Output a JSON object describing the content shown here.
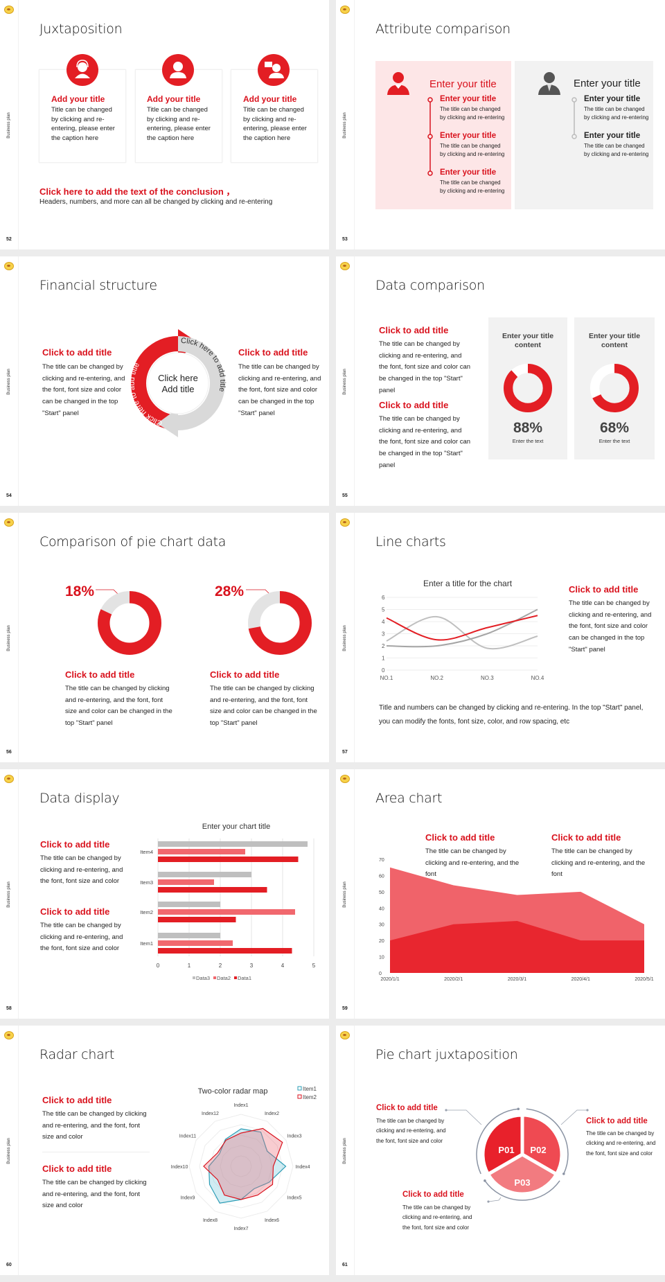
{
  "sidebar_label": "Business plan",
  "colors": {
    "accent": "#e31e24",
    "pink_panel": "#fde6e7",
    "gray_panel": "#f2f2f2",
    "light_red": "#f1686e",
    "gray": "#bfbfbf"
  },
  "s52": {
    "page": "52",
    "title": "Juxtaposition",
    "cards": [
      {
        "icon": "customer-service-icon",
        "title": "Add your title",
        "body": "Title can be changed by clicking and re-entering, please enter the caption here"
      },
      {
        "icon": "staff-person-icon",
        "title": "Add your title",
        "body": "Title can be changed by clicking and re-entering, please enter the caption here"
      },
      {
        "icon": "presenter-icon",
        "title": "Add your title",
        "body": "Title can be changed by clicking and re-entering, please enter the caption here"
      }
    ],
    "conclusion_title": "Click here to add the text of the conclusion ，",
    "conclusion_body": "Headers, numbers, and more can all be changed by clicking and re-entering"
  },
  "s53": {
    "page": "53",
    "title": "Attribute comparison",
    "left": {
      "icon": "female-person-icon",
      "heading": "Enter your title",
      "items": [
        {
          "title": "Enter your title",
          "body": "The title can be changed by clicking and re-entering"
        },
        {
          "title": "Enter your title",
          "body": "The title can be changed by clicking and re-entering"
        },
        {
          "title": "Enter your title",
          "body": "The title can be changed by clicking and re-entering"
        }
      ]
    },
    "right": {
      "icon": "male-person-icon",
      "heading": "Enter your title",
      "items": [
        {
          "title": "Enter your title",
          "body": "The title can be changed by clicking and re-entering"
        },
        {
          "title": "Enter your title",
          "body": "The title can be changed by clicking and re-entering"
        }
      ]
    }
  },
  "s54": {
    "page": "54",
    "title": "Financial structure",
    "left": {
      "title": "Click to add title",
      "body": "The title can be changed by clicking and re-entering, and the font, font size and color can be changed in the top \"Start\" panel"
    },
    "right": {
      "title": "Click to add title",
      "body": "The title can be changed by clicking and re-entering, and the font, font size and color can be changed in the top \"Start\" panel"
    },
    "arrow_red_label": "Click here to add title",
    "arrow_gray_label": "Click here to add title",
    "center_line1": "Click here",
    "center_line2": "Add title"
  },
  "s55": {
    "page": "55",
    "title": "Data comparison",
    "texts": [
      {
        "title": "Click to add title",
        "body": "The title can be changed by clicking and re-entering, and the font, font size and color can be changed in the top \"Start\" panel"
      },
      {
        "title": "Click to add title",
        "body": "The title can be changed by clicking and re-entering, and the font, font size and color can be changed in the top \"Start\" panel"
      }
    ],
    "cards": [
      {
        "title": "Enter your title content",
        "percent": 88,
        "value_label": "88%",
        "caption": "Enter the text"
      },
      {
        "title": "Enter your title content",
        "percent": 68,
        "value_label": "68%",
        "caption": "Enter the text"
      }
    ]
  },
  "s56": {
    "page": "56",
    "title": "Comparison of pie chart data",
    "pies": [
      {
        "percent": 18,
        "label": "18%",
        "title": "Click to add title",
        "body": "The title can be changed by clicking and re-entering, and the font, font size and color can be changed in the top \"Start\" panel"
      },
      {
        "percent": 28,
        "label": "28%",
        "title": "Click to add title",
        "body": "The title can be changed by clicking and re-entering, and the font, font size and color can be changed in the top \"Start\" panel"
      }
    ]
  },
  "s57": {
    "page": "57",
    "title": "Line charts",
    "side": {
      "title": "Click to add title",
      "body": "The title can be changed by clicking and re-entering, and the font, font size and color can be changed in the top \"Start\" panel"
    },
    "footer": "Title and numbers can be changed by clicking and re-entering. In the top \"Start\" panel, you can modify the fonts, font size, color, and row spacing, etc"
  },
  "s58": {
    "page": "58",
    "title": "Data display",
    "texts": [
      {
        "title": "Click to add title",
        "body": "The title can be changed by clicking and re-entering, and the font, font size and color"
      },
      {
        "title": "Click to add title",
        "body": "The title can be changed by clicking and re-entering, and the font, font size and color"
      }
    ]
  },
  "s59": {
    "page": "59",
    "title": "Area chart",
    "texts": [
      {
        "title": "Click to add title",
        "body": "The title can be changed by clicking and re-entering, and the font"
      },
      {
        "title": "Click to add title",
        "body": "The title can be changed by clicking and re-entering, and the font"
      }
    ]
  },
  "s60": {
    "page": "60",
    "title": "Radar chart",
    "texts": [
      {
        "title": "Click to add title",
        "body": "The title can be changed by clicking and re-entering, and the font, font size and color"
      },
      {
        "title": "Click to add title",
        "body": "The title can be changed by clicking and re-entering, and the font, font size and color"
      }
    ]
  },
  "s61": {
    "page": "61",
    "title": "Pie chart juxtaposition",
    "segments": [
      "P01",
      "P02",
      "P03"
    ],
    "texts": [
      {
        "title": "Click to add title",
        "body": "The title can be changed by clicking and re-entering, and the font, font size and color"
      },
      {
        "title": "Click to add title",
        "body": "The title can be changed by clicking and re-entering, and the font, font size and color"
      },
      {
        "title": "Click to add title",
        "body": "The title can be changed by clicking and re-entering, and the font, font size and color"
      }
    ]
  },
  "chart_data": [
    {
      "type": "line",
      "title": "Enter a title for the chart",
      "categories": [
        "NO.1",
        "NO.2",
        "NO.3",
        "NO.4"
      ],
      "ylim": [
        0,
        6
      ],
      "yticks": [
        "0",
        "1",
        "2",
        "3",
        "4",
        "5",
        "6"
      ],
      "grid": true,
      "series": [
        {
          "color": "#bfbfbf",
          "values": [
            2.4,
            4.4,
            1.8,
            2.8
          ]
        },
        {
          "color": "#a5a5a5",
          "values": [
            2.0,
            2.0,
            3.0,
            5.0
          ]
        },
        {
          "color": "#e31e24",
          "values": [
            4.3,
            2.5,
            3.5,
            4.5
          ]
        }
      ]
    },
    {
      "type": "bar",
      "orientation": "horizontal",
      "title": "Enter your chart title",
      "categories": [
        "Item1",
        "Item2",
        "Item3",
        "Item4"
      ],
      "xlim": [
        0,
        5
      ],
      "xticks": [
        "0",
        "1",
        "2",
        "3",
        "4",
        "5"
      ],
      "grid": true,
      "legend": "bottom",
      "series": [
        {
          "name": "Data3",
          "color": "#bfbfbf",
          "values": [
            2,
            2,
            3,
            4.8
          ]
        },
        {
          "name": "Data2",
          "color": "#f1686e",
          "values": [
            2.4,
            4.4,
            1.8,
            2.8
          ]
        },
        {
          "name": "Data1",
          "color": "#e31e24",
          "values": [
            4.3,
            2.5,
            3.5,
            4.5
          ]
        }
      ]
    },
    {
      "type": "area",
      "categories": [
        "2020/1/1",
        "2020/2/1",
        "2020/3/1",
        "2020/4/1",
        "2020/5/1"
      ],
      "ylim": [
        0,
        70
      ],
      "yticks": [
        "0",
        "10",
        "20",
        "30",
        "40",
        "50",
        "60",
        "70"
      ],
      "series": [
        {
          "color": "#f0636a",
          "values": [
            65,
            54,
            48,
            50,
            30
          ]
        },
        {
          "color": "#e8262f",
          "values": [
            20,
            30,
            32,
            20,
            20
          ]
        }
      ]
    },
    {
      "type": "radar",
      "title": "Two-color radar map",
      "legend": "top-right",
      "rlim": [
        0,
        5
      ],
      "categories": [
        "Index1",
        "Index2",
        "Index3",
        "Index4",
        "Index5",
        "Index6",
        "Index7",
        "Index8",
        "Index9",
        "Index10",
        "Index11",
        "Index12"
      ],
      "series": [
        {
          "name": "Item1",
          "color": "#2a9cb5",
          "fill": "rgba(120,200,220,0.35)",
          "values": [
            3.6,
            3.8,
            2.9,
            4.3,
            3.1,
            2.5,
            3.2,
            4.1,
            3.5,
            3.1,
            2.4,
            3.0
          ]
        },
        {
          "name": "Item2",
          "color": "#d9121d",
          "fill": "rgba(235,110,120,0.35)",
          "values": [
            3.2,
            4.2,
            4.6,
            3.1,
            3.5,
            3.2,
            3.2,
            3.2,
            2.6,
            3.6,
            2.6,
            2.9
          ]
        }
      ]
    }
  ]
}
